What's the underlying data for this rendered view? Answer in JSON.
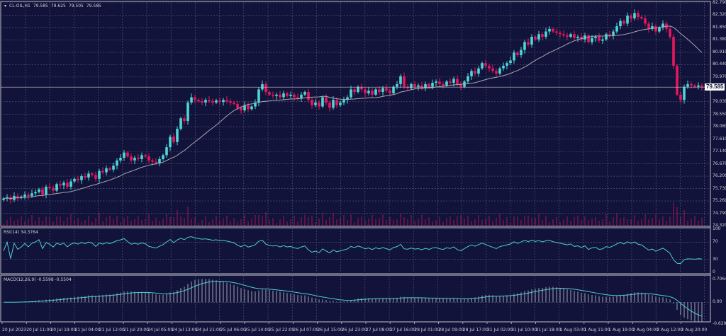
{
  "header": {
    "symbol": "CL-OIL,H1",
    "open": "79.585",
    "high": "79.625",
    "low": "79.505",
    "close": "79.585"
  },
  "colors": {
    "background": "#11133a",
    "grid": "#5a5c80",
    "bull": "#4fd6d6",
    "bear": "#e8175d",
    "ma": "#a8a8b0",
    "rsi": "#4fcfcf",
    "macd_hist": "#c8c8d0",
    "macd_signal": "#4fcfcf",
    "axis": "#c0c0c8"
  },
  "price_axis": [
    "82.790",
    "82.320",
    "81.850",
    "81.380",
    "80.910",
    "80.440",
    "79.970",
    "79.030",
    "78.550",
    "78.080",
    "77.610",
    "77.140",
    "76.670",
    "76.200",
    "75.730",
    "75.260",
    "74.790",
    "74.320"
  ],
  "current_price": "79.585",
  "rsi": {
    "label": "RSI(14) 34.3764",
    "levels": [
      "100",
      "70",
      "30",
      "0"
    ]
  },
  "macd": {
    "label": "MACD(12,26,9) -0.5598 -0.5504",
    "levels": [
      "0.7064",
      "0.00",
      "-0.6291"
    ]
  },
  "time_axis": [
    "20 Jul 2023",
    "20 Jul 11:00",
    "20 Jul 19:00",
    "21 Jul 04:00",
    "21 Jul 12:00",
    "21 Jul 20:00",
    "24 Jul 05:00",
    "24 Jul 13:00",
    "24 Jul 21:00",
    "25 Jul 06:00",
    "25 Jul 14:00",
    "25 Jul 22:00",
    "26 Jul 07:00",
    "26 Jul 15:00",
    "26 Jul 23:00",
    "27 Jul 08:00",
    "27 Jul 16:00",
    "28 Jul 01:00",
    "28 Jul 09:00",
    "28 Jul 17:00",
    "31 Jul 02:00",
    "31 Jul 10:00",
    "31 Jul 18:00",
    "1 Aug 03:00",
    "1 Aug 11:00",
    "1 Aug 19:00",
    "2 Aug 04:00",
    "2 Aug 12:00",
    "2 Aug 20:00"
  ],
  "chart_data": {
    "type": "candlestick",
    "timeframe": "H1",
    "ylim": [
      74.32,
      82.79
    ],
    "indicators": [
      "moving-average",
      "volume",
      "RSI(14)",
      "MACD(12,26,9)"
    ],
    "closes": [
      75.35,
      75.4,
      75.3,
      75.45,
      75.38,
      75.42,
      75.5,
      75.45,
      75.55,
      75.6,
      75.7,
      75.5,
      75.8,
      75.75,
      75.65,
      75.9,
      75.85,
      75.95,
      75.8,
      76.0,
      76.1,
      76.05,
      76.2,
      76.15,
      76.3,
      76.25,
      76.1,
      76.4,
      76.35,
      76.5,
      76.45,
      76.6,
      76.8,
      76.9,
      77.1,
      76.95,
      76.8,
      76.9,
      76.85,
      77.0,
      76.95,
      76.8,
      76.75,
      76.7,
      76.85,
      77.0,
      77.3,
      77.7,
      77.5,
      78.0,
      78.4,
      78.3,
      79.0,
      79.2,
      79.1,
      79.05,
      79.0,
      79.1,
      79.05,
      79.0,
      79.08,
      79.02,
      79.1,
      79.05,
      79.0,
      78.95,
      78.8,
      78.7,
      78.9,
      78.75,
      78.85,
      79.0,
      79.5,
      79.7,
      79.4,
      79.3,
      79.25,
      79.3,
      79.2,
      79.35,
      79.25,
      79.3,
      79.2,
      79.15,
      79.3,
      79.4,
      79.1,
      78.9,
      79.0,
      78.85,
      79.2,
      79.0,
      78.8,
      79.1,
      78.9,
      79.0,
      79.1,
      79.2,
      79.5,
      79.4,
      79.6,
      79.5,
      79.35,
      79.45,
      79.3,
      79.5,
      79.4,
      79.55,
      79.45,
      79.35,
      79.6,
      79.7,
      80.0,
      79.6,
      79.55,
      79.7,
      79.6,
      79.65,
      79.55,
      79.7,
      79.6,
      79.75,
      79.8,
      79.7,
      79.65,
      79.8,
      79.75,
      79.9,
      79.7,
      79.6,
      79.8,
      80.0,
      80.2,
      80.1,
      80.3,
      80.5,
      80.4,
      80.3,
      80.2,
      80.1,
      80.3,
      80.4,
      80.5,
      80.6,
      80.9,
      80.8,
      81.0,
      81.3,
      81.2,
      81.5,
      81.4,
      81.6,
      81.5,
      81.7,
      81.8,
      81.7,
      81.65,
      81.6,
      81.55,
      81.5,
      81.6,
      81.45,
      81.5,
      81.4,
      81.55,
      81.3,
      81.45,
      81.5,
      81.35,
      81.4,
      81.6,
      81.55,
      81.7,
      81.9,
      82.1,
      82.0,
      82.3,
      82.2,
      82.4,
      82.25,
      82.2,
      82.0,
      81.8,
      81.9,
      81.7,
      81.85,
      82.0,
      81.8,
      81.5,
      80.4,
      79.3,
      79.1,
      79.6,
      79.7,
      79.65,
      79.6,
      79.65,
      79.585
    ]
  }
}
